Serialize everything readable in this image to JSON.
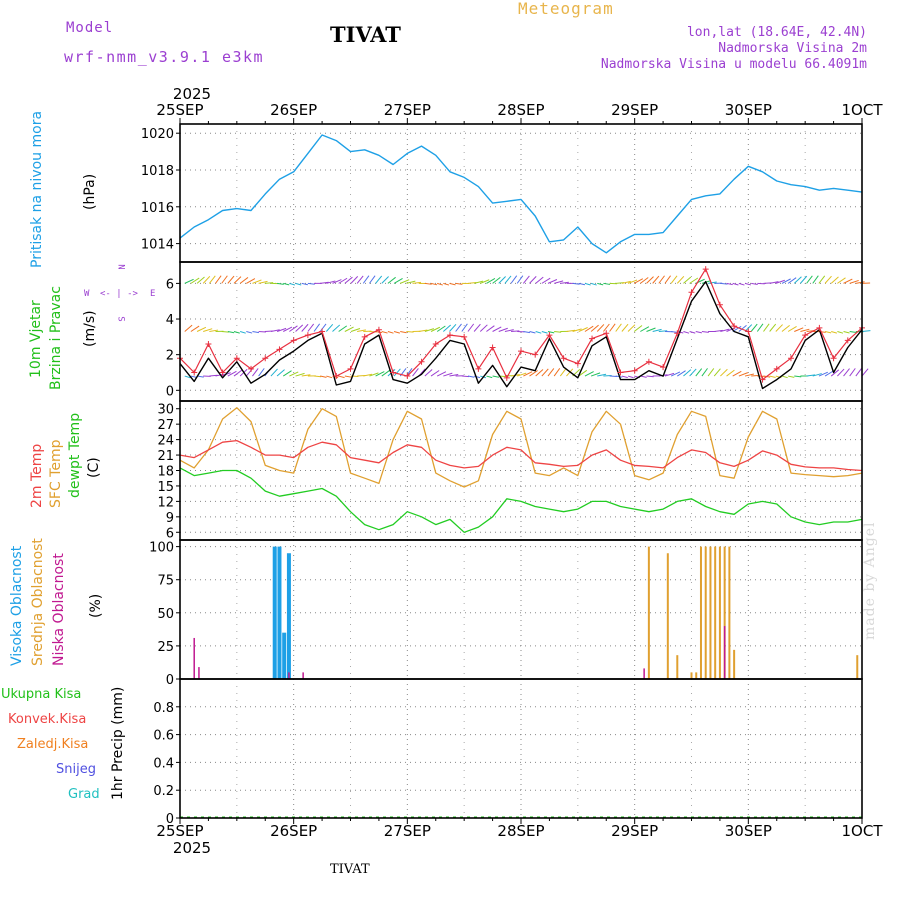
{
  "header": {
    "model_label": "Model",
    "model_name": "wrf-nmm_v3.9.1 e3km",
    "station": "TIVAT",
    "title": "Meteogram",
    "coords": "lon,lat (18.64E, 42.4N)",
    "elevation": "Nadmorska Visina 2m",
    "model_elevation": "Nadmorska Visina u modelu 66.4091m"
  },
  "footer": {
    "station": "TIVAT",
    "credit": "made by Angel"
  },
  "colors": {
    "title": "#000000",
    "model": "#9b3fd1",
    "meteogram": "#e8b54c",
    "info": "#9b3fd1",
    "pressure": "#1ea0e6",
    "wind_label": "#22c01a",
    "mean_wind": "#000000",
    "gust": "#e83040",
    "temp2m": "#ee4444",
    "sfc_temp": "#e0a030",
    "dewpoint": "#22cc22",
    "cloud_high": "#1ea0e6",
    "cloud_mid": "#e0a030",
    "cloud_low": "#c01890",
    "precip_total": "#22c01a",
    "precip_conv": "#ee4444",
    "precip_frz": "#f08020",
    "snow": "#5050e0",
    "hail": "#20c0c0"
  },
  "time_axis": {
    "year": "2025",
    "ticks": [
      "25SEP",
      "26SEP",
      "27SEP",
      "28SEP",
      "29SEP",
      "30SEP",
      "1OCT"
    ],
    "range_hours": [
      0,
      144
    ]
  },
  "panel_labels": {
    "pressure": {
      "name": "Pritisak na nivou mora",
      "unit": "(hPa)"
    },
    "wind": {
      "line1": "10m Vjetar",
      "line2": "Brzina i Pravac",
      "unit": "(m/s)",
      "compass": {
        "n": "N",
        "s": "S",
        "w": "W",
        "e": "E",
        "arrows": "<- | ->"
      }
    },
    "temp": {
      "t2m": "2m Temp",
      "sfc": "SFC Temp",
      "dew": "dewpt Temp",
      "unit": "(C)"
    },
    "cloud": {
      "high": "Visoka Oblacnost",
      "mid": "Srednja Oblacnost",
      "low": "Niska Oblacnost",
      "unit": "(%)"
    },
    "precip": {
      "total": "Ukupna Kisa",
      "conv": "Konvek.Kisa",
      "frz": "Zaledj.Kisa",
      "snow": "Snijeg",
      "hail": "Grad",
      "axis": "1hr Precip (mm)"
    }
  },
  "chart_data": [
    {
      "type": "line",
      "name": "Sea level pressure",
      "ylabel": "(hPa)",
      "ylim": [
        1013,
        1020.5
      ],
      "yticks": [
        1014,
        1016,
        1018,
        1020
      ],
      "x": [
        0,
        3,
        6,
        9,
        12,
        15,
        18,
        21,
        24,
        27,
        30,
        33,
        36,
        39,
        42,
        45,
        48,
        51,
        54,
        57,
        60,
        63,
        66,
        69,
        72,
        75,
        78,
        81,
        84,
        87,
        90,
        93,
        96,
        99,
        102,
        105,
        108,
        111,
        114,
        117,
        120,
        123,
        126,
        129,
        132,
        135,
        138,
        141,
        144
      ],
      "series": [
        {
          "name": "Pritisak",
          "values": [
            1014.3,
            1014.9,
            1015.3,
            1015.8,
            1015.9,
            1015.8,
            1016.7,
            1017.5,
            1017.9,
            1018.9,
            1019.9,
            1019.6,
            1019.0,
            1019.1,
            1018.8,
            1018.3,
            1018.9,
            1019.3,
            1018.8,
            1017.9,
            1017.6,
            1017.1,
            1016.2,
            1016.3,
            1016.4,
            1015.5,
            1014.1,
            1014.2,
            1014.9,
            1014.0,
            1013.5,
            1014.1,
            1014.5,
            1014.5,
            1014.6,
            1015.5,
            1016.4,
            1016.6,
            1016.7,
            1017.5,
            1018.2,
            1017.9,
            1017.4,
            1017.2,
            1017.1,
            1016.9,
            1017.0,
            1016.9,
            1016.8
          ]
        }
      ]
    },
    {
      "type": "line",
      "name": "10m wind speed",
      "ylabel": "(m/s)",
      "ylim": [
        -0.6,
        7.2
      ],
      "yticks": [
        0,
        2,
        4,
        6
      ],
      "x": [
        0,
        3,
        6,
        9,
        12,
        15,
        18,
        21,
        24,
        27,
        30,
        33,
        36,
        39,
        42,
        45,
        48,
        51,
        54,
        57,
        60,
        63,
        66,
        69,
        72,
        75,
        78,
        81,
        84,
        87,
        90,
        93,
        96,
        99,
        102,
        105,
        108,
        111,
        114,
        117,
        120,
        123,
        126,
        129,
        132,
        135,
        138,
        141,
        144
      ],
      "series": [
        {
          "name": "Mean wind",
          "values": [
            1.5,
            0.5,
            1.8,
            0.7,
            1.6,
            0.4,
            0.9,
            1.7,
            2.2,
            2.8,
            3.2,
            0.3,
            0.5,
            2.6,
            3.1,
            0.6,
            0.4,
            0.9,
            1.8,
            2.8,
            2.6,
            0.4,
            1.4,
            0.2,
            1.3,
            1.1,
            2.9,
            1.3,
            0.7,
            2.5,
            3.0,
            0.6,
            0.6,
            1.1,
            0.8,
            2.9,
            5.0,
            6.1,
            4.3,
            3.3,
            3.0,
            0.1,
            0.6,
            1.2,
            2.8,
            3.4,
            1.0,
            2.4,
            3.4
          ]
        },
        {
          "name": "Gust",
          "values": [
            1.8,
            1.0,
            2.6,
            1.0,
            1.8,
            1.2,
            1.8,
            2.3,
            2.8,
            3.1,
            3.3,
            0.8,
            1.2,
            3.0,
            3.4,
            1.0,
            0.8,
            1.6,
            2.6,
            3.1,
            3.0,
            1.2,
            2.4,
            0.7,
            2.2,
            2.0,
            3.1,
            1.8,
            1.5,
            2.9,
            3.2,
            1.0,
            1.1,
            1.6,
            1.3,
            3.2,
            5.5,
            6.8,
            4.8,
            3.6,
            3.3,
            0.6,
            1.2,
            1.8,
            3.1,
            3.5,
            1.8,
            2.8,
            3.5
          ]
        }
      ]
    },
    {
      "type": "line",
      "name": "Temperature",
      "ylabel": "(C)",
      "ylim": [
        4.5,
        31.5
      ],
      "yticks": [
        6,
        9,
        12,
        15,
        18,
        21,
        24,
        27,
        30
      ],
      "x": [
        0,
        3,
        6,
        9,
        12,
        15,
        18,
        21,
        24,
        27,
        30,
        33,
        36,
        39,
        42,
        45,
        48,
        51,
        54,
        57,
        60,
        63,
        66,
        69,
        72,
        75,
        78,
        81,
        84,
        87,
        90,
        93,
        96,
        99,
        102,
        105,
        108,
        111,
        114,
        117,
        120,
        123,
        126,
        129,
        132,
        135,
        138,
        141,
        144
      ],
      "series": [
        {
          "name": "2m Temp",
          "values": [
            21.0,
            20.5,
            22.0,
            23.5,
            23.8,
            22.5,
            21.0,
            21.0,
            20.5,
            22.5,
            23.5,
            23.0,
            20.5,
            20.0,
            19.5,
            21.5,
            23.0,
            22.5,
            20.0,
            19.0,
            18.5,
            18.8,
            21.0,
            22.5,
            22.0,
            19.5,
            19.2,
            18.8,
            19.0,
            21.0,
            22.0,
            20.0,
            19.0,
            18.8,
            18.5,
            20.5,
            22.0,
            21.5,
            19.5,
            18.8,
            20.0,
            21.8,
            21.0,
            19.2,
            18.7,
            18.5,
            18.5,
            18.2,
            18.0
          ]
        },
        {
          "name": "SFC Temp",
          "values": [
            20.0,
            18.5,
            22.0,
            28.0,
            30.2,
            27.5,
            19.0,
            18.0,
            17.5,
            26.0,
            30.0,
            28.5,
            17.5,
            16.5,
            15.5,
            24.0,
            29.5,
            28.0,
            17.5,
            16.0,
            14.8,
            16.0,
            25.0,
            29.5,
            28.0,
            17.5,
            17.0,
            18.5,
            17.0,
            25.5,
            29.5,
            27.0,
            17.0,
            16.2,
            17.5,
            25.0,
            29.5,
            28.5,
            17.0,
            16.5,
            24.5,
            29.5,
            28.0,
            17.5,
            17.2,
            17.0,
            16.8,
            17.0,
            17.5
          ]
        },
        {
          "name": "dewpt Temp",
          "values": [
            18.5,
            17.0,
            17.5,
            18.0,
            18.0,
            16.5,
            14.0,
            13.0,
            13.5,
            14.0,
            14.5,
            13.0,
            10.0,
            7.5,
            6.5,
            7.5,
            10.0,
            9.0,
            7.5,
            8.5,
            6.0,
            7.0,
            9.0,
            12.5,
            12.0,
            11.0,
            10.5,
            10.0,
            10.5,
            12.0,
            12.0,
            11.0,
            10.5,
            10.0,
            10.5,
            12.0,
            12.5,
            11.0,
            10.0,
            9.5,
            11.5,
            12.0,
            11.5,
            9.0,
            8.0,
            7.5,
            8.0,
            8.0,
            8.5
          ]
        }
      ]
    },
    {
      "type": "bar",
      "name": "Cloud cover",
      "ylabel": "(%)",
      "ylim": [
        0,
        105
      ],
      "yticks": [
        0,
        25,
        50,
        75,
        100
      ],
      "series": [
        {
          "name": "Visoka Oblacnost",
          "points": [
            [
              20,
              100
            ],
            [
              21,
              100
            ],
            [
              22,
              35
            ],
            [
              23,
              95
            ]
          ]
        },
        {
          "name": "Srednja Oblacnost",
          "points": [
            [
              99,
              100
            ],
            [
              103,
              95
            ],
            [
              105,
              18
            ],
            [
              108,
              5
            ],
            [
              109,
              5
            ],
            [
              110,
              100
            ],
            [
              111,
              100
            ],
            [
              112,
              100
            ],
            [
              113,
              100
            ],
            [
              114,
              100
            ],
            [
              115,
              100
            ],
            [
              116,
              100
            ],
            [
              117,
              22
            ],
            [
              143,
              18
            ]
          ]
        },
        {
          "name": "Niska Oblacnost",
          "points": [
            [
              3,
              31
            ],
            [
              4,
              9
            ],
            [
              23,
              5
            ],
            [
              26,
              5
            ],
            [
              98,
              8
            ],
            [
              115,
              40
            ]
          ]
        }
      ]
    },
    {
      "type": "bar",
      "name": "1hr precipitation",
      "ylabel": "1hr Precip (mm)",
      "ylim": [
        0,
        1.0
      ],
      "yticks": [
        0,
        0.2,
        0.4,
        0.6,
        0.8
      ],
      "series": [
        {
          "name": "Ukupna Kisa",
          "values": []
        },
        {
          "name": "Konvek.Kisa",
          "values": []
        },
        {
          "name": "Zaledj.Kisa",
          "values": []
        },
        {
          "name": "Snijeg",
          "values": []
        },
        {
          "name": "Grad",
          "values": []
        }
      ]
    }
  ]
}
